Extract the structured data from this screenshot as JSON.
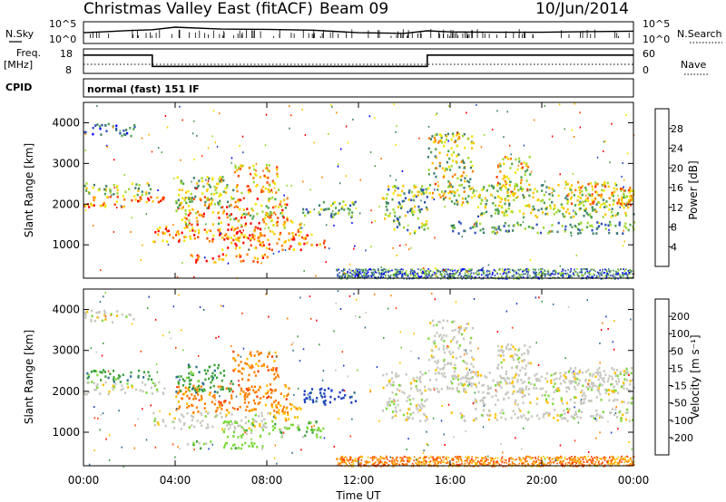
{
  "header": {
    "title": "Christmas Valley East (fitACF)",
    "beam": "Beam 09",
    "date": "10/Jun/2014"
  },
  "left_labels": {
    "nsky": "N.Sky",
    "freq_line1": "Freq.",
    "freq_line2": "[MHz]",
    "cpid": "CPID"
  },
  "right_labels": {
    "nsearch": "N.Search",
    "nave": "Nave"
  },
  "strip_ticks": {
    "nsky_top": "10^5",
    "nsky_bottom": "10^0",
    "nsearch_top": "10^5",
    "nsearch_bottom": "10^0",
    "freq_top": "18",
    "freq_bottom": "8",
    "nave_top": "60",
    "nave_bottom": "0"
  },
  "cpid_text": "normal (fast) 151 IF",
  "colors": {
    "power_scale": [
      "#0000ff",
      "#2d4fb8",
      "#3f7f6f",
      "#4fa34f",
      "#9fd832",
      "#f2e600",
      "#ffc000",
      "#ff8000",
      "#ff4000",
      "#ff0000"
    ],
    "velocity_scale": [
      "#1f3fbf",
      "#2e6f8f",
      "#3aa03a",
      "#7cd83a",
      "#c8c8c0",
      "#ffc000",
      "#ff8000",
      "#ff4000",
      "#ff0000"
    ]
  },
  "chart_data": [
    {
      "type": "line",
      "title": "Christmas Valley East (fitACF)",
      "series": [
        {
          "name": "N.Sky",
          "x": [
            "00:00",
            "01:00",
            "02:00",
            "03:00",
            "04:00",
            "06:00",
            "08:00",
            "10:00",
            "12:00",
            "14:00",
            "15:00",
            "16:00",
            "18:00",
            "20:00",
            "22:00",
            "24:00"
          ],
          "values": [
            300,
            600,
            1200,
            2000,
            10000,
            3000,
            2500,
            1500,
            300,
            200,
            1000,
            500,
            400,
            400,
            600,
            800
          ]
        }
      ],
      "ylim": [
        1,
        100000
      ],
      "yticks": [
        "10^0",
        "10^5"
      ],
      "yscale": "log"
    },
    {
      "type": "line",
      "series": [
        {
          "name": "Freq.",
          "x": [
            "00:00",
            "03:00",
            "03:00",
            "15:00",
            "15:00",
            "24:00"
          ],
          "values": [
            16,
            16,
            10.8,
            10.8,
            16,
            16
          ]
        }
      ],
      "ylabel": "Freq. [MHz]",
      "yticks": [
        "8",
        "18"
      ],
      "ylim": [
        8,
        18
      ]
    },
    {
      "type": "heatmap",
      "title": "Power [dB]",
      "xlabel": "Time UT",
      "ylabel": "Slant Range [km]",
      "xticks": [
        "00:00",
        "04:00",
        "08:00",
        "12:00",
        "16:00",
        "20:00",
        "00:00"
      ],
      "yticks": [
        "1000",
        "2000",
        "3000",
        "4000"
      ],
      "xlim_hours": [
        0,
        24
      ],
      "ylim_km": [
        180,
        4500
      ],
      "colorbar_label": "Power [dB]",
      "colorbar_ticks": [
        "4",
        "8",
        "12",
        "16",
        "20",
        "24",
        "28"
      ],
      "colorbar_range": [
        0,
        30
      ]
    },
    {
      "type": "heatmap",
      "title": "Velocity [m s-1]",
      "xlabel": "Time UT",
      "ylabel": "Slant Range [km]",
      "xticks": [
        "00:00",
        "04:00",
        "08:00",
        "12:00",
        "16:00",
        "20:00",
        "00:00"
      ],
      "yticks": [
        "1000",
        "2000",
        "3000",
        "4000"
      ],
      "xlim_hours": [
        0,
        24
      ],
      "ylim_km": [
        180,
        4500
      ],
      "colorbar_label": "Velocity [m s⁻¹]",
      "colorbar_ticks": [
        "200",
        "100",
        "50",
        "15",
        "-15",
        "-50",
        "-100",
        "-200"
      ]
    }
  ]
}
